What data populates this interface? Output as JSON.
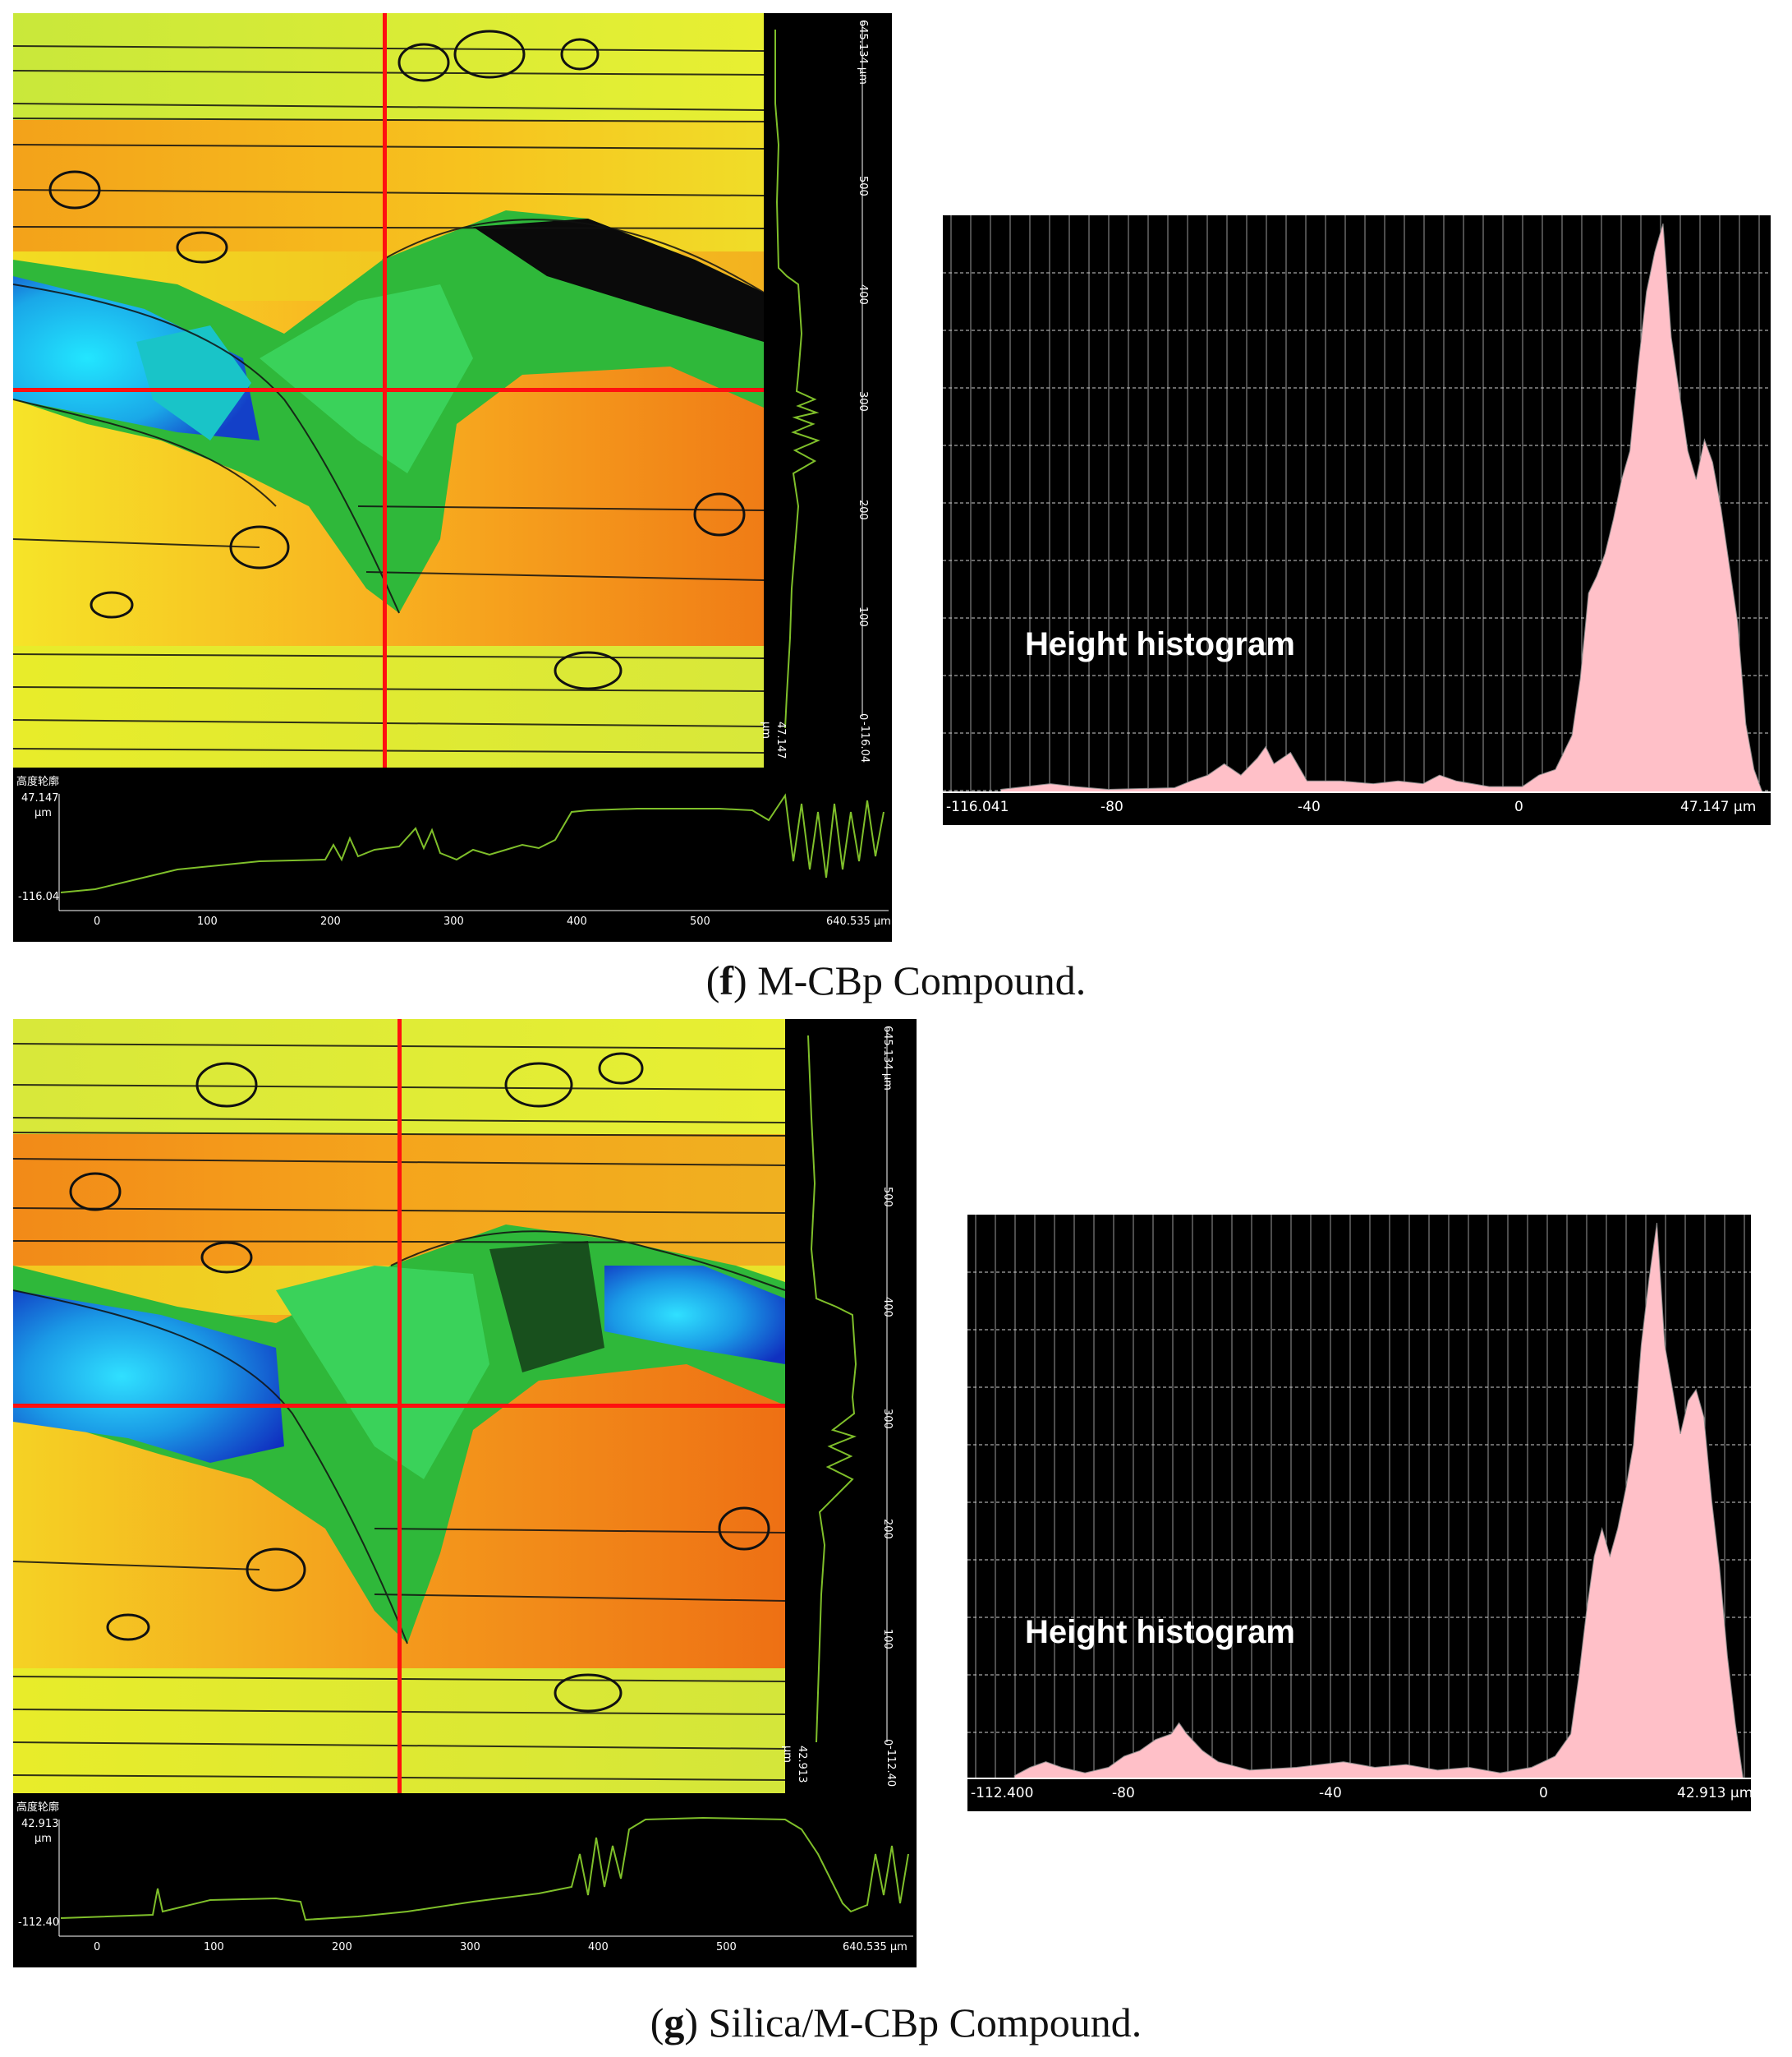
{
  "figures": [
    {
      "id": "f",
      "caption_letter": "f",
      "caption_text": "M-CBp Compound.",
      "profile_title": "高度轮廓",
      "side_axis": {
        "top": "645.134 μm",
        "ticks": [
          "500",
          "400",
          "300",
          "200",
          "100",
          "0"
        ],
        "min_label": "-116.04",
        "max_label": "47.147",
        "unit": "μm"
      },
      "bottom_axis": {
        "ylabel_top": "47.147",
        "ylabel_unit": "μm",
        "ylabel_bottom": "-116.04",
        "ticks": [
          "0",
          "100",
          "200",
          "300",
          "400",
          "500",
          "640.535 μm"
        ]
      },
      "histogram": {
        "label": "Height histogram",
        "x_ticks": [
          "-116.041",
          "-80",
          "-40",
          "0",
          "47.147 μm"
        ]
      }
    },
    {
      "id": "g",
      "caption_letter": "g",
      "caption_text": "Silica/M-CBp Compound.",
      "profile_title": "高度轮廓",
      "side_axis": {
        "top": "645.134 μm",
        "ticks": [
          "500",
          "400",
          "300",
          "200",
          "100",
          "0"
        ],
        "min_label": "-112.40",
        "max_label": "42.913",
        "unit": "μm"
      },
      "bottom_axis": {
        "ylabel_top": "42.913",
        "ylabel_unit": "μm",
        "ylabel_bottom": "-112.40",
        "ticks": [
          "0",
          "100",
          "200",
          "300",
          "400",
          "500",
          "640.535 μm"
        ]
      },
      "histogram": {
        "label": "Height histogram",
        "x_ticks": [
          "-112.400",
          "-80",
          "-40",
          "0",
          "42.913 μm"
        ]
      }
    }
  ],
  "colors": {
    "histogram_fill": "#ffc0c8",
    "profile_line": "#7fbf2a",
    "crosshair": "#ff1010",
    "panel_bg": "#000000"
  }
}
